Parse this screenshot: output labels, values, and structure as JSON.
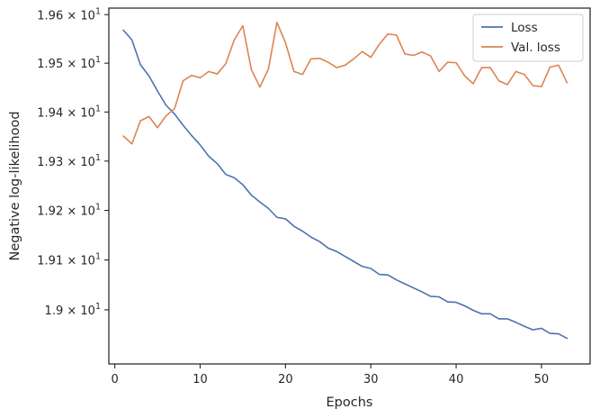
{
  "chart_data": {
    "type": "line",
    "xlabel": "Epochs",
    "ylabel": "Negative log-likelihood",
    "xlim": [
      -0.7,
      55.7
    ],
    "ylim": [
      18.892,
      19.6135
    ],
    "y_scale": "log",
    "grid": false,
    "legend_position": "top-right",
    "x_ticks": [
      {
        "value": 0,
        "label": "0"
      },
      {
        "value": 10,
        "label": "10"
      },
      {
        "value": 20,
        "label": "20"
      },
      {
        "value": 30,
        "label": "30"
      },
      {
        "value": 40,
        "label": "40"
      },
      {
        "value": 50,
        "label": "50"
      }
    ],
    "y_ticks": [
      {
        "value": 19.0,
        "mantissa": "1.9",
        "base": "10",
        "exponent": "1"
      },
      {
        "value": 19.1,
        "mantissa": "1.91",
        "base": "10",
        "exponent": "1"
      },
      {
        "value": 19.2,
        "mantissa": "1.92",
        "base": "10",
        "exponent": "1"
      },
      {
        "value": 19.3,
        "mantissa": "1.93",
        "base": "10",
        "exponent": "1"
      },
      {
        "value": 19.4,
        "mantissa": "1.94",
        "base": "10",
        "exponent": "1"
      },
      {
        "value": 19.5,
        "mantissa": "1.95",
        "base": "10",
        "exponent": "1"
      },
      {
        "value": 19.6,
        "mantissa": "1.96",
        "base": "10",
        "exponent": "1"
      }
    ],
    "x": [
      1,
      2,
      3,
      4,
      5,
      6,
      7,
      8,
      9,
      10,
      11,
      12,
      13,
      14,
      15,
      16,
      17,
      18,
      19,
      20,
      21,
      22,
      23,
      24,
      25,
      26,
      27,
      28,
      29,
      30,
      31,
      32,
      33,
      34,
      35,
      36,
      37,
      38,
      39,
      40,
      41,
      42,
      43,
      44,
      45,
      46,
      47,
      48,
      49,
      50,
      51,
      52,
      53
    ],
    "series": [
      {
        "name": "Loss",
        "color": "#4c72b0",
        "values": [
          19.568,
          19.548,
          19.497,
          19.474,
          19.443,
          19.414,
          19.396,
          19.373,
          19.352,
          19.333,
          19.31,
          19.295,
          19.273,
          19.266,
          19.252,
          19.231,
          19.217,
          19.204,
          19.186,
          19.183,
          19.168,
          19.158,
          19.146,
          19.137,
          19.124,
          19.117,
          19.107,
          19.097,
          19.087,
          19.083,
          19.071,
          19.07,
          19.06,
          19.052,
          19.044,
          19.036,
          19.027,
          19.026,
          19.016,
          19.015,
          19.008,
          18.999,
          18.992,
          18.992,
          18.982,
          18.982,
          18.975,
          18.967,
          18.96,
          18.963,
          18.953,
          18.952,
          18.943
        ]
      },
      {
        "name": "Val. loss",
        "color": "#dd8452",
        "values": [
          19.351,
          19.335,
          19.382,
          19.391,
          19.368,
          19.392,
          19.407,
          19.464,
          19.475,
          19.47,
          19.483,
          19.478,
          19.499,
          19.548,
          19.577,
          19.487,
          19.451,
          19.488,
          19.584,
          19.542,
          19.483,
          19.477,
          19.509,
          19.51,
          19.502,
          19.491,
          19.496,
          19.509,
          19.524,
          19.512,
          19.539,
          19.56,
          19.558,
          19.519,
          19.516,
          19.523,
          19.515,
          19.483,
          19.502,
          19.501,
          19.474,
          19.458,
          19.491,
          19.491,
          19.464,
          19.456,
          19.483,
          19.477,
          19.454,
          19.452,
          19.492,
          19.496,
          19.46
        ]
      }
    ]
  }
}
